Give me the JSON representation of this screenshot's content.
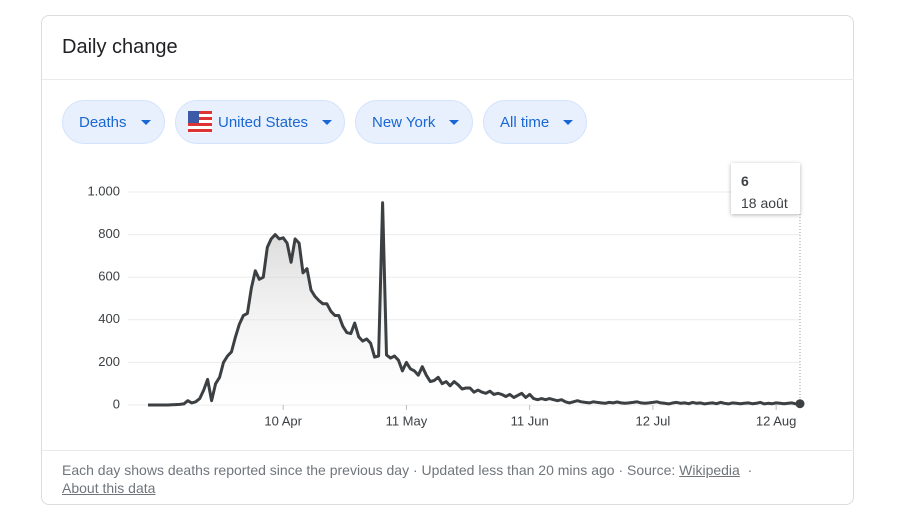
{
  "header": {
    "title": "Daily change"
  },
  "filters": [
    {
      "label": "Deaths"
    },
    {
      "label": "United States"
    },
    {
      "label": "New York"
    },
    {
      "label": "All time"
    }
  ],
  "chart_data": {
    "type": "line",
    "color": "#3c4043",
    "grid": true,
    "categories": [
      null,
      null,
      null,
      null,
      null,
      null,
      null,
      null,
      null,
      null,
      null,
      null,
      null,
      null,
      null,
      null,
      null,
      null,
      null,
      null,
      null,
      null,
      null,
      null,
      null,
      null,
      null,
      null,
      null,
      null,
      null,
      null,
      null,
      null,
      "10 Apr",
      null,
      null,
      null,
      null,
      null,
      null,
      null,
      null,
      null,
      null,
      null,
      null,
      null,
      null,
      null,
      null,
      null,
      null,
      null,
      null,
      null,
      null,
      null,
      null,
      null,
      null,
      null,
      null,
      null,
      null,
      "11 May",
      null,
      null,
      null,
      null,
      null,
      null,
      null,
      null,
      null,
      null,
      null,
      null,
      null,
      null,
      null,
      null,
      null,
      null,
      null,
      null,
      null,
      null,
      null,
      null,
      null,
      null,
      null,
      null,
      null,
      null,
      "11 Jun",
      null,
      null,
      null,
      null,
      null,
      null,
      null,
      null,
      null,
      null,
      null,
      null,
      null,
      null,
      null,
      null,
      null,
      null,
      null,
      null,
      null,
      null,
      null,
      null,
      null,
      null,
      null,
      null,
      null,
      null,
      "12 Jul",
      null,
      null,
      null,
      null,
      null,
      null,
      null,
      null,
      null,
      null,
      null,
      null,
      null,
      null,
      null,
      null,
      null,
      null,
      null,
      null,
      null,
      null,
      null,
      null,
      null,
      null,
      null,
      null,
      null,
      null,
      "12 Aug",
      null,
      null,
      null,
      null,
      null,
      null
    ],
    "values": [
      0,
      0,
      0,
      0,
      0,
      0,
      1,
      2,
      3,
      5,
      20,
      10,
      15,
      30,
      70,
      120,
      20,
      100,
      130,
      200,
      230,
      250,
      320,
      380,
      420,
      430,
      550,
      630,
      590,
      600,
      740,
      780,
      800,
      780,
      785,
      760,
      670,
      780,
      760,
      620,
      640,
      540,
      510,
      490,
      475,
      475,
      440,
      420,
      420,
      370,
      340,
      335,
      385,
      320,
      300,
      310,
      290,
      225,
      230,
      950,
      235,
      220,
      230,
      210,
      160,
      200,
      170,
      160,
      140,
      180,
      140,
      110,
      115,
      130,
      100,
      110,
      90,
      110,
      95,
      75,
      80,
      80,
      60,
      70,
      60,
      55,
      65,
      50,
      55,
      50,
      40,
      50,
      35,
      45,
      55,
      35,
      50,
      30,
      25,
      30,
      25,
      30,
      25,
      20,
      25,
      15,
      10,
      15,
      20,
      15,
      12,
      10,
      15,
      12,
      10,
      8,
      12,
      10,
      14,
      10,
      8,
      10,
      12,
      15,
      10,
      8,
      10,
      12,
      15,
      10,
      8,
      5,
      10,
      12,
      8,
      10,
      6,
      12,
      8,
      10,
      5,
      8,
      10,
      6,
      12,
      8,
      5,
      10,
      8,
      6,
      8,
      10,
      6,
      8,
      12,
      5,
      8,
      6,
      10,
      8,
      6,
      8,
      10,
      5,
      6
    ],
    "ylim": [
      0,
      1000
    ],
    "yticks": [
      0,
      200,
      400,
      600,
      800,
      {
        "value": 1000,
        "label": "1.000"
      }
    ],
    "tooltip_date": "18 août"
  },
  "footer": {
    "note": "Each day shows deaths reported since the previous day · Updated less than 20 mins ago  ·  Source:",
    "source_link": "Wikipedia",
    "separator": "·",
    "about_link": "About this data"
  }
}
